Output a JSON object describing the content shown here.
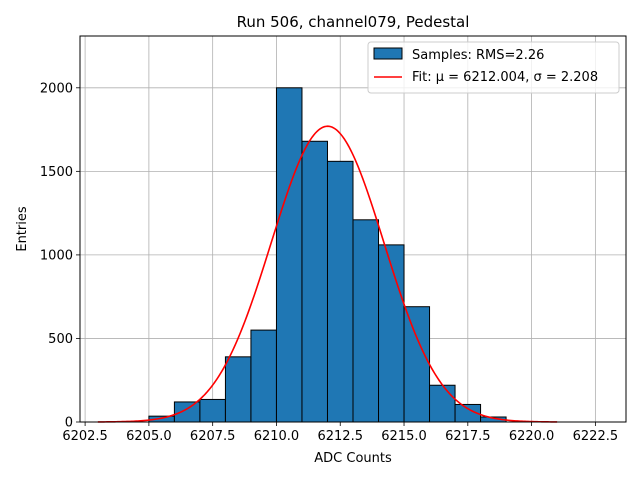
{
  "chart_data": {
    "type": "bar",
    "title": "Run 506, channel079, Pedestal",
    "xlabel": "ADC Counts",
    "ylabel": "Entries",
    "xlim": [
      6202.3,
      6223.7
    ],
    "ylim": [
      0,
      2310
    ],
    "grid": true,
    "legend_placement": "top-right",
    "x_ticks": [
      6202.5,
      6205.0,
      6207.5,
      6210.0,
      6212.5,
      6215.0,
      6217.5,
      6220.0,
      6222.5
    ],
    "x_tick_labels": [
      "6202.5",
      "6205.0",
      "6207.5",
      "6210.0",
      "6212.5",
      "6215.0",
      "6217.5",
      "6220.0",
      "6222.5"
    ],
    "y_ticks": [
      0,
      500,
      1000,
      1500,
      2000
    ],
    "y_tick_labels": [
      "0",
      "500",
      "1000",
      "1500",
      "2000"
    ],
    "histogram": {
      "name": "Samples: RMS=2.26",
      "color": "#1f77b4",
      "edge_color": "#000000",
      "bins": [
        {
          "x0": 6205,
          "x1": 6206,
          "count": 35
        },
        {
          "x0": 6206,
          "x1": 6207,
          "count": 120
        },
        {
          "x0": 6207,
          "x1": 6208,
          "count": 135
        },
        {
          "x0": 6208,
          "x1": 6209,
          "count": 390
        },
        {
          "x0": 6209,
          "x1": 6210,
          "count": 550
        },
        {
          "x0": 6210,
          "x1": 6211,
          "count": 2000
        },
        {
          "x0": 6211,
          "x1": 6212,
          "count": 1680
        },
        {
          "x0": 6212,
          "x1": 6213,
          "count": 1560
        },
        {
          "x0": 6213,
          "x1": 6214,
          "count": 1210
        },
        {
          "x0": 6214,
          "x1": 6215,
          "count": 1060
        },
        {
          "x0": 6215,
          "x1": 6216,
          "count": 690
        },
        {
          "x0": 6216,
          "x1": 6217,
          "count": 220
        },
        {
          "x0": 6217,
          "x1": 6218,
          "count": 105
        },
        {
          "x0": 6218,
          "x1": 6219,
          "count": 30
        }
      ]
    },
    "fit": {
      "name": "Fit: μ = 6212.004, σ = 2.208",
      "color": "#ff0000",
      "mu": 6212.004,
      "sigma": 2.208,
      "amplitude": 1770,
      "x_range": [
        6203,
        6221
      ]
    }
  }
}
